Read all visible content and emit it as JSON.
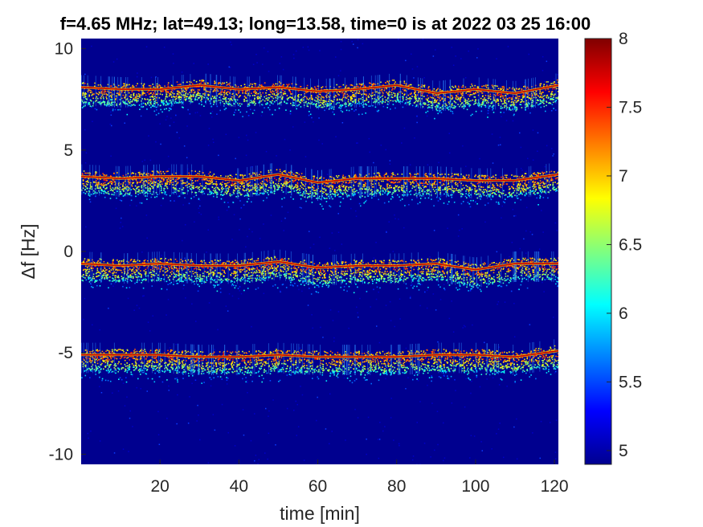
{
  "chart_data": {
    "type": "heatmap",
    "title": "f=4.65 MHz;  lat=49.13; long=13.58, time=0 is at 2022 03 25 16:00",
    "xlabel": "time [min]",
    "ylabel": "Δf [Hz]",
    "xlim": [
      0,
      121
    ],
    "ylim": [
      -10.5,
      10.5
    ],
    "xticks": [
      20,
      40,
      60,
      80,
      100,
      120
    ],
    "xtick_labels": [
      "20",
      "40",
      "60",
      "80",
      "100",
      "120"
    ],
    "yticks": [
      -10,
      -5,
      0,
      5,
      10
    ],
    "ytick_labels": [
      "-10",
      "-5",
      "0",
      "5",
      "10"
    ],
    "colorbar": {
      "range": [
        4.9,
        8
      ],
      "ticks": [
        5,
        5.5,
        6,
        6.5,
        7,
        7.5,
        8
      ],
      "tick_labels": [
        "5",
        "5.5",
        "6",
        "6.5",
        "7",
        "7.5",
        "8"
      ],
      "colormap": "jet"
    },
    "background_color": "#00008f",
    "bands": [
      {
        "name": "",
        "x": [
          0,
          10,
          20,
          30,
          40,
          50,
          60,
          70,
          80,
          90,
          100,
          110,
          121
        ],
        "y": [
          8.1,
          8.0,
          8.0,
          8.2,
          8.0,
          8.1,
          7.9,
          8.0,
          8.2,
          7.8,
          8.0,
          7.8,
          8.2
        ]
      },
      {
        "name": "",
        "x": [
          0,
          10,
          20,
          30,
          40,
          50,
          60,
          70,
          80,
          90,
          100,
          110,
          121
        ],
        "y": [
          3.7,
          3.6,
          3.7,
          3.7,
          3.5,
          3.8,
          3.4,
          3.6,
          3.6,
          3.6,
          3.5,
          3.5,
          3.8
        ]
      },
      {
        "name": "",
        "x": [
          0,
          10,
          20,
          30,
          40,
          50,
          60,
          70,
          80,
          90,
          100,
          110,
          121
        ],
        "y": [
          -0.6,
          -0.7,
          -0.6,
          -0.7,
          -0.7,
          -0.5,
          -0.8,
          -0.7,
          -0.7,
          -0.6,
          -0.9,
          -0.6,
          -0.6
        ]
      },
      {
        "name": "",
        "x": [
          0,
          10,
          20,
          30,
          40,
          50,
          60,
          70,
          80,
          90,
          100,
          110,
          121
        ],
        "y": [
          -5.1,
          -5.1,
          -5.1,
          -5.2,
          -5.2,
          -5.1,
          -5.2,
          -5.2,
          -5.2,
          -5.1,
          -5.1,
          -5.2,
          -4.9
        ]
      }
    ]
  }
}
